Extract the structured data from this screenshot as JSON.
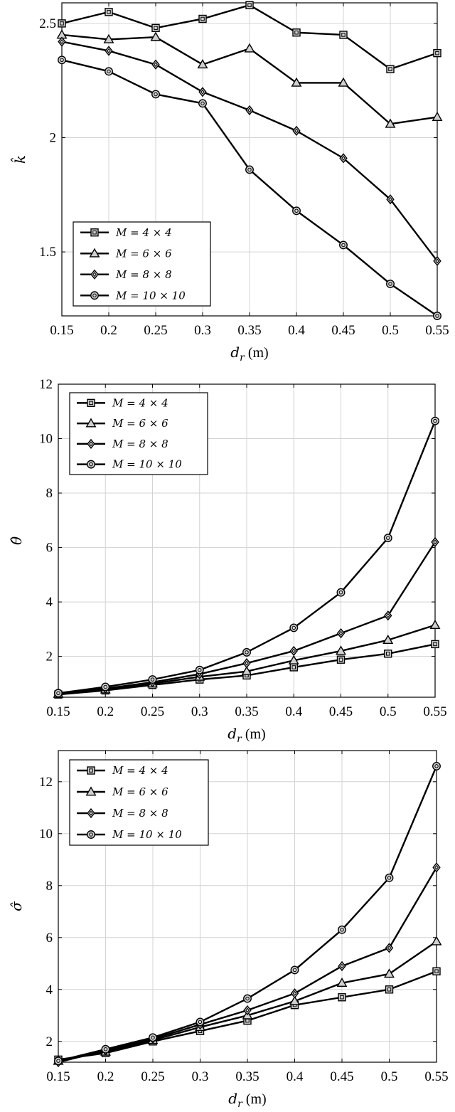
{
  "chart_data": [
    {
      "type": "line",
      "ylabel": "k̂",
      "xlabel": "d_r (m)",
      "xlabel_main": "d",
      "xlabel_sub": "r",
      "xlabel_unit": " (m)",
      "x": [
        0.15,
        0.2,
        0.25,
        0.3,
        0.35,
        0.4,
        0.45,
        0.5,
        0.55
      ],
      "xticks": [
        "0.15",
        "0.2",
        "0.25",
        "0.3",
        "0.35",
        "0.4",
        "0.45",
        "0.5",
        "0.55"
      ],
      "xlim": [
        0.15,
        0.55
      ],
      "ylim": [
        1.22,
        2.59
      ],
      "yticks": [
        1.5,
        2,
        2.5
      ],
      "ytick_labels": [
        "1.5",
        "2",
        "2.5"
      ],
      "grid": true,
      "legend_position": "bottom-left",
      "series": [
        {
          "name": "M = 4 × 4",
          "marker": "square",
          "values": [
            2.5,
            2.55,
            2.48,
            2.52,
            2.58,
            2.46,
            2.45,
            2.3,
            2.37
          ]
        },
        {
          "name": "M = 6 × 6",
          "marker": "triangle",
          "values": [
            2.45,
            2.43,
            2.44,
            2.32,
            2.39,
            2.24,
            2.24,
            2.06,
            2.09
          ]
        },
        {
          "name": "M = 8 × 8",
          "marker": "diamond",
          "values": [
            2.42,
            2.38,
            2.32,
            2.2,
            2.12,
            2.03,
            1.91,
            1.73,
            1.46
          ]
        },
        {
          "name": "M = 10 × 10",
          "marker": "circle",
          "values": [
            2.34,
            2.29,
            2.19,
            2.15,
            1.86,
            1.68,
            1.53,
            1.36,
            1.22
          ]
        }
      ]
    },
    {
      "type": "line",
      "ylabel": "θ̂",
      "xlabel": "d_r (m)",
      "xlabel_main": "d",
      "xlabel_sub": "r",
      "xlabel_unit": " (m)",
      "x": [
        0.15,
        0.2,
        0.25,
        0.3,
        0.35,
        0.4,
        0.45,
        0.5,
        0.55
      ],
      "xticks": [
        "0.15",
        "0.2",
        "0.25",
        "0.3",
        "0.35",
        "0.4",
        "0.45",
        "0.5",
        "0.55"
      ],
      "xlim": [
        0.15,
        0.55
      ],
      "ylim": [
        0.5,
        12
      ],
      "yticks": [
        2,
        4,
        6,
        8,
        10,
        12
      ],
      "ytick_labels": [
        "2",
        "4",
        "6",
        "8",
        "10",
        "12"
      ],
      "grid": true,
      "legend_position": "top-left",
      "series": [
        {
          "name": "M = 4 × 4",
          "marker": "square",
          "values": [
            0.6,
            0.75,
            0.95,
            1.15,
            1.3,
            1.6,
            1.88,
            2.1,
            2.45
          ]
        },
        {
          "name": "M = 6 × 6",
          "marker": "triangle",
          "values": [
            0.62,
            0.78,
            1.0,
            1.25,
            1.45,
            1.85,
            2.2,
            2.6,
            3.15
          ]
        },
        {
          "name": "M = 8 × 8",
          "marker": "diamond",
          "values": [
            0.64,
            0.82,
            1.05,
            1.35,
            1.75,
            2.2,
            2.85,
            3.5,
            6.2
          ]
        },
        {
          "name": "M = 10 × 10",
          "marker": "circle",
          "values": [
            0.65,
            0.88,
            1.15,
            1.5,
            2.15,
            3.05,
            4.35,
            6.35,
            10.65
          ]
        }
      ]
    },
    {
      "type": "line",
      "ylabel": "σ̂",
      "xlabel": "d_r (m)",
      "xlabel_main": "d",
      "xlabel_sub": "r",
      "xlabel_unit": " (m)",
      "x": [
        0.15,
        0.2,
        0.25,
        0.3,
        0.35,
        0.4,
        0.45,
        0.5,
        0.55
      ],
      "xticks": [
        "0.15",
        "0.2",
        "0.25",
        "0.3",
        "0.35",
        "0.4",
        "0.45",
        "0.5",
        "0.55"
      ],
      "xlim": [
        0.15,
        0.55
      ],
      "ylim": [
        1.2,
        13.2
      ],
      "yticks": [
        2,
        4,
        6,
        8,
        10,
        12
      ],
      "ytick_labels": [
        "2",
        "4",
        "6",
        "8",
        "10",
        "12"
      ],
      "grid": true,
      "legend_position": "top-left",
      "series": [
        {
          "name": "M = 4 × 4",
          "marker": "square",
          "values": [
            1.3,
            1.55,
            2.0,
            2.4,
            2.8,
            3.4,
            3.7,
            4.0,
            4.7
          ]
        },
        {
          "name": "M = 6 × 6",
          "marker": "triangle",
          "values": [
            1.25,
            1.6,
            2.05,
            2.55,
            3.0,
            3.55,
            4.25,
            4.6,
            5.85
          ]
        },
        {
          "name": "M = 8 × 8",
          "marker": "diamond",
          "values": [
            1.2,
            1.65,
            2.1,
            2.65,
            3.2,
            3.85,
            4.9,
            5.6,
            8.7
          ]
        },
        {
          "name": "M = 10 × 10",
          "marker": "circle",
          "values": [
            1.25,
            1.7,
            2.15,
            2.75,
            3.65,
            4.75,
            6.3,
            8.3,
            12.6
          ]
        }
      ]
    }
  ]
}
